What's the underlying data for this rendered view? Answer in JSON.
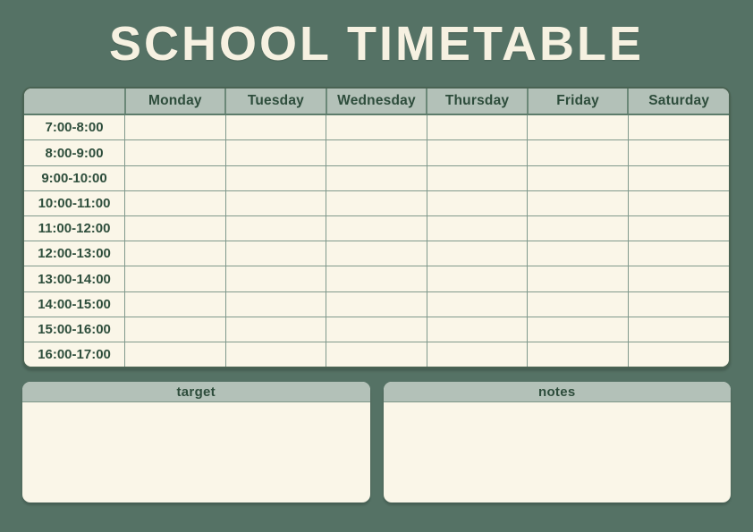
{
  "title": "SCHOOL TIMETABLE",
  "timetable": {
    "days": [
      "Monday",
      "Tuesday",
      "Wednesday",
      "Thursday",
      "Friday",
      "Saturday"
    ],
    "time_slots": [
      "7:00-8:00",
      "8:00-9:00",
      "9:00-10:00",
      "10:00-11:00",
      "11:00-12:00",
      "12:00-13:00",
      "13:00-14:00",
      "14:00-15:00",
      "15:00-16:00",
      "16:00-17:00"
    ]
  },
  "sections": {
    "target": {
      "label": "target"
    },
    "notes": {
      "label": "notes"
    }
  },
  "colors": {
    "background": "#557265",
    "panel_cream": "#faf6e8",
    "header_gray_green": "#b3c1b8",
    "text_dark_green": "#2d4c3b",
    "grid_line": "#80998c",
    "title_cream": "#f6f1e1"
  }
}
